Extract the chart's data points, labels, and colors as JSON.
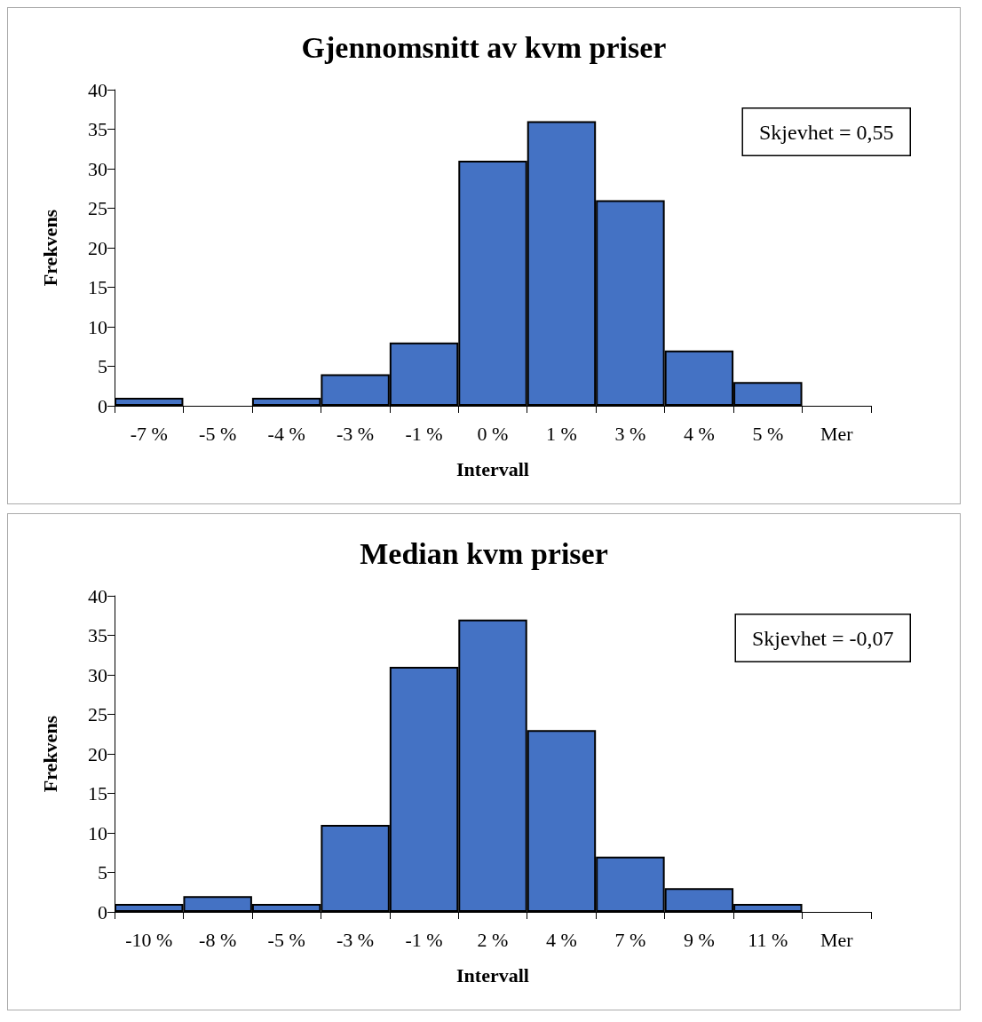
{
  "chart_data": [
    {
      "type": "bar",
      "title": "Gjennomsnitt av kvm priser",
      "xlabel": "Intervall",
      "ylabel": "Frekvens",
      "categories": [
        "-7 %",
        "-5 %",
        "-4 %",
        "-3 %",
        "-1 %",
        "0 %",
        "1 %",
        "3 %",
        "4 %",
        "5 %",
        "Mer"
      ],
      "series": [
        {
          "color": "#4472c4",
          "values": [
            1,
            0,
            1,
            4,
            8,
            31,
            36,
            26,
            7,
            3,
            0
          ]
        }
      ],
      "ylim": [
        0,
        40
      ],
      "yticks": [
        0,
        5,
        10,
        15,
        20,
        25,
        30,
        35,
        40
      ],
      "grid": false,
      "annotations": [
        "Skjevhet = 0,55"
      ]
    },
    {
      "type": "bar",
      "title": "Median kvm priser",
      "xlabel": "Intervall",
      "ylabel": "Frekvens",
      "categories": [
        "-10 %",
        "-8 %",
        "-5 %",
        "-3 %",
        "-1 %",
        "2 %",
        "4 %",
        "7 %",
        "9 %",
        "11 %",
        "Mer"
      ],
      "series": [
        {
          "color": "#4472c4",
          "values": [
            1,
            2,
            1,
            11,
            31,
            37,
            23,
            7,
            3,
            1,
            0
          ]
        }
      ],
      "ylim": [
        0,
        40
      ],
      "yticks": [
        0,
        5,
        10,
        15,
        20,
        25,
        30,
        35,
        40
      ],
      "grid": false,
      "annotations": [
        "Skjevhet = -0,07"
      ]
    }
  ]
}
